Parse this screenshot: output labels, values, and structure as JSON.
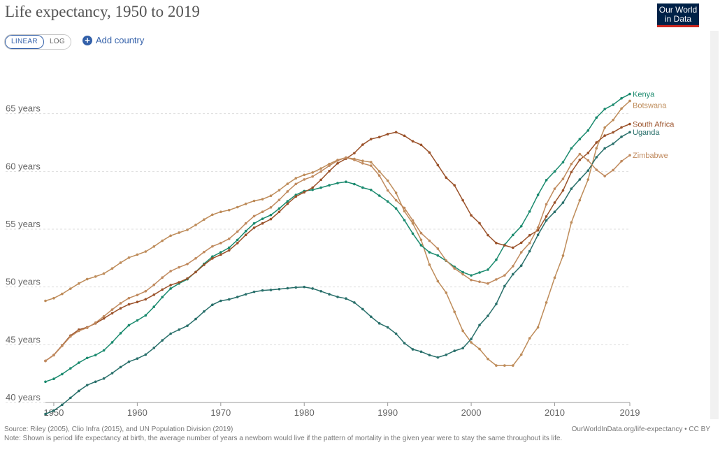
{
  "header": {
    "title": "Life expectancy, 1950 to 2019",
    "logo_line1": "Our World",
    "logo_line2": "in Data"
  },
  "controls": {
    "linear_label": "LINEAR",
    "log_label": "LOG",
    "add_country_label": "Add country"
  },
  "footer": {
    "source": "Source: Riley (2005), Clio Infra (2015), and UN Population Division (2019)",
    "link": "OurWorldInData.org/life-expectancy • CC BY",
    "note": "Note: Shown is period life expectancy at birth, the average number of years a newborn would live if the pattern of mortality in the given year were to stay the same throughout its life."
  },
  "chart_data": {
    "type": "line",
    "title": "Life expectancy, 1950 to 2019",
    "xlim": [
      1949,
      2019
    ],
    "ylim": [
      40,
      70
    ],
    "x_ticks": [
      {
        "value": 1950,
        "label": "1950"
      },
      {
        "value": 1960,
        "label": "1960"
      },
      {
        "value": 1970,
        "label": "1970"
      },
      {
        "value": 1980,
        "label": "1980"
      },
      {
        "value": 1990,
        "label": "1990"
      },
      {
        "value": 2000,
        "label": "2000"
      },
      {
        "value": 2010,
        "label": "2010"
      },
      {
        "value": 2019,
        "label": "2019"
      }
    ],
    "y_ticks": [
      {
        "value": 40,
        "label": "40 years"
      },
      {
        "value": 45,
        "label": "45 years"
      },
      {
        "value": 50,
        "label": "50 years"
      },
      {
        "value": 55,
        "label": "55 years"
      },
      {
        "value": 60,
        "label": "60 years"
      },
      {
        "value": 65,
        "label": "65 years"
      }
    ],
    "grid": true,
    "legend": "line-end labels",
    "series": [
      {
        "name": "Botswana",
        "color": "#be8c5a",
        "points": [
          [
            1949,
            48.8
          ],
          [
            1955,
            50.9
          ],
          [
            1960,
            52.8
          ],
          [
            1965,
            54.7
          ],
          [
            1970,
            56.5
          ],
          [
            1975,
            57.6
          ],
          [
            1980,
            59.7
          ],
          [
            1985,
            61.2
          ],
          [
            1988,
            60.8
          ],
          [
            1990,
            59.2
          ],
          [
            1993,
            55.5
          ],
          [
            1996,
            50.5
          ],
          [
            2000,
            45.2
          ],
          [
            2003,
            43.2
          ],
          [
            2005,
            43.2
          ],
          [
            2008,
            46.5
          ],
          [
            2010,
            50.8
          ],
          [
            2013,
            57.5
          ],
          [
            2016,
            63.8
          ],
          [
            2019,
            66.1
          ]
        ]
      },
      {
        "name": "Kenya",
        "color": "#1a8a6e",
        "points": [
          [
            1949,
            41.8
          ],
          [
            1955,
            44.1
          ],
          [
            1960,
            47.1
          ],
          [
            1965,
            50.3
          ],
          [
            1970,
            53.0
          ],
          [
            1975,
            55.9
          ],
          [
            1980,
            58.3
          ],
          [
            1985,
            59.1
          ],
          [
            1988,
            58.4
          ],
          [
            1990,
            57.4
          ],
          [
            1995,
            53.0
          ],
          [
            2000,
            51.0
          ],
          [
            2002,
            51.5
          ],
          [
            2005,
            54.5
          ],
          [
            2010,
            60.0
          ],
          [
            2013,
            62.8
          ],
          [
            2016,
            65.4
          ],
          [
            2019,
            66.7
          ]
        ]
      },
      {
        "name": "South Africa",
        "color": "#9a5129",
        "points": [
          [
            1949,
            43.6
          ],
          [
            1953,
            46.3
          ],
          [
            1960,
            48.7
          ],
          [
            1965,
            50.4
          ],
          [
            1970,
            52.8
          ],
          [
            1975,
            55.5
          ],
          [
            1980,
            58.2
          ],
          [
            1985,
            61.1
          ],
          [
            1988,
            62.8
          ],
          [
            1991,
            63.4
          ],
          [
            1994,
            62.3
          ],
          [
            1998,
            58.8
          ],
          [
            2000,
            56.2
          ],
          [
            2003,
            53.8
          ],
          [
            2005,
            53.4
          ],
          [
            2008,
            54.9
          ],
          [
            2010,
            57.3
          ],
          [
            2013,
            61.0
          ],
          [
            2016,
            63.1
          ],
          [
            2019,
            64.1
          ]
        ]
      },
      {
        "name": "Uganda",
        "color": "#286f6a",
        "points": [
          [
            1949,
            39.0
          ],
          [
            1955,
            41.8
          ],
          [
            1960,
            43.8
          ],
          [
            1965,
            46.3
          ],
          [
            1970,
            48.8
          ],
          [
            1975,
            49.7
          ],
          [
            1980,
            50.0
          ],
          [
            1985,
            49.0
          ],
          [
            1990,
            46.5
          ],
          [
            1993,
            44.6
          ],
          [
            1996,
            43.9
          ],
          [
            1999,
            44.7
          ],
          [
            2002,
            47.5
          ],
          [
            2005,
            51.1
          ],
          [
            2010,
            56.5
          ],
          [
            2013,
            59.3
          ],
          [
            2016,
            62.0
          ],
          [
            2019,
            63.4
          ]
        ]
      },
      {
        "name": "Zimbabwe",
        "color": "#c08a5e",
        "points": [
          [
            1949,
            43.6
          ],
          [
            1953,
            46.2
          ],
          [
            1960,
            49.3
          ],
          [
            1965,
            51.7
          ],
          [
            1970,
            53.8
          ],
          [
            1975,
            56.5
          ],
          [
            1980,
            59.3
          ],
          [
            1985,
            61.2
          ],
          [
            1988,
            60.5
          ],
          [
            1991,
            57.5
          ],
          [
            1995,
            54.0
          ],
          [
            1998,
            51.6
          ],
          [
            2000,
            50.6
          ],
          [
            2002,
            50.3
          ],
          [
            2004,
            51.0
          ],
          [
            2007,
            53.8
          ],
          [
            2010,
            58.5
          ],
          [
            2013,
            61.5
          ],
          [
            2016,
            59.6
          ],
          [
            2019,
            61.4
          ]
        ]
      }
    ]
  }
}
